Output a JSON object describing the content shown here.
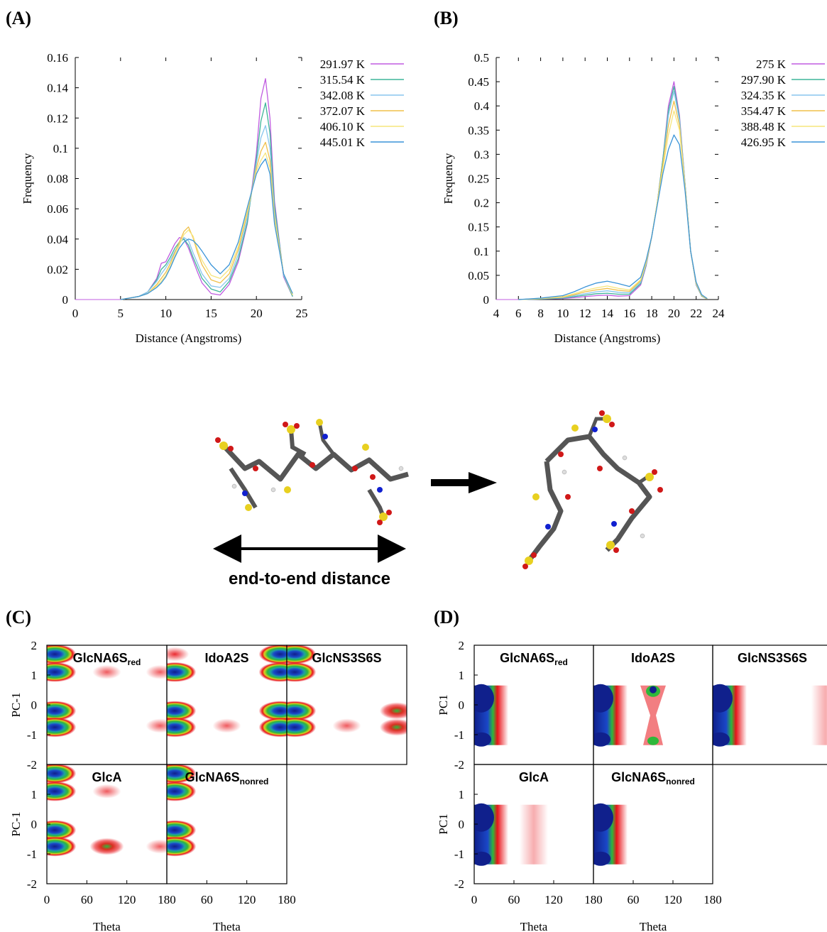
{
  "panels": {
    "A": "(A)",
    "B": "(B)",
    "C": "(C)",
    "D": "(D)"
  },
  "colors": {
    "series": [
      "#c05ce0",
      "#3fb59a",
      "#88c6ee",
      "#f0c04a",
      "#f6e57c",
      "#3a94d8"
    ],
    "density_low": "#e8141a",
    "density_mid": "#2eb83a",
    "density_high": "#10208c"
  },
  "schematic": {
    "arrow_label": "end-to-end distance",
    "icons": [
      "extended-molecule-icon",
      "folded-molecule-icon",
      "transition-arrow-icon",
      "double-arrow-icon"
    ]
  },
  "chart_data": [
    {
      "id": "A",
      "type": "line",
      "xlabel": "Distance (Angstroms)",
      "ylabel": "Frequency",
      "xlim": [
        0,
        25
      ],
      "ylim": [
        0,
        0.16
      ],
      "xticks": [
        "0",
        "5",
        "10",
        "15",
        "20",
        "25"
      ],
      "yticks": [
        "0",
        "0.02",
        "0.04",
        "0.06",
        "0.08",
        "0.1",
        "0.12",
        "0.14",
        "0.16"
      ],
      "legend_position": "outside-right",
      "x": [
        5,
        6,
        7,
        8,
        9,
        9.5,
        10,
        10.5,
        11,
        11.5,
        12,
        12.5,
        13,
        13.5,
        14,
        15,
        16,
        17,
        18,
        19,
        20,
        20.5,
        21,
        21.5,
        22,
        23,
        24
      ],
      "series": [
        {
          "name": "291.97 K",
          "values": [
            0,
            0.001,
            0.002,
            0.005,
            0.014,
            0.024,
            0.025,
            0.031,
            0.037,
            0.041,
            0.04,
            0.034,
            0.026,
            0.018,
            0.011,
            0.004,
            0.003,
            0.01,
            0.025,
            0.05,
            0.097,
            0.133,
            0.146,
            0.12,
            0.065,
            0.015,
            0.002
          ]
        },
        {
          "name": "315.54 K",
          "values": [
            0,
            0.001,
            0.002,
            0.005,
            0.013,
            0.02,
            0.023,
            0.028,
            0.034,
            0.038,
            0.04,
            0.036,
            0.028,
            0.021,
            0.014,
            0.007,
            0.005,
            0.012,
            0.027,
            0.051,
            0.093,
            0.118,
            0.13,
            0.11,
            0.062,
            0.016,
            0.002
          ]
        },
        {
          "name": "342.08 K",
          "values": [
            0,
            0.001,
            0.002,
            0.005,
            0.012,
            0.017,
            0.021,
            0.026,
            0.032,
            0.037,
            0.041,
            0.039,
            0.031,
            0.024,
            0.017,
            0.009,
            0.008,
            0.014,
            0.03,
            0.054,
            0.09,
            0.107,
            0.115,
            0.1,
            0.058,
            0.016,
            0.003
          ]
        },
        {
          "name": "372.07 K",
          "values": [
            0,
            0.001,
            0.002,
            0.004,
            0.01,
            0.014,
            0.018,
            0.024,
            0.031,
            0.038,
            0.045,
            0.048,
            0.041,
            0.031,
            0.023,
            0.013,
            0.011,
            0.017,
            0.033,
            0.057,
            0.087,
            0.098,
            0.104,
            0.092,
            0.055,
            0.017,
            0.003
          ]
        },
        {
          "name": "406.10 K",
          "values": [
            0,
            0.001,
            0.002,
            0.004,
            0.009,
            0.012,
            0.016,
            0.022,
            0.029,
            0.036,
            0.043,
            0.046,
            0.042,
            0.033,
            0.026,
            0.016,
            0.014,
            0.02,
            0.035,
            0.059,
            0.085,
            0.092,
            0.097,
            0.087,
            0.053,
            0.017,
            0.003
          ]
        },
        {
          "name": "445.01 K",
          "values": [
            0,
            0.001,
            0.002,
            0.004,
            0.008,
            0.011,
            0.015,
            0.021,
            0.028,
            0.034,
            0.038,
            0.04,
            0.039,
            0.036,
            0.032,
            0.023,
            0.017,
            0.023,
            0.038,
            0.061,
            0.083,
            0.089,
            0.093,
            0.083,
            0.05,
            0.017,
            0.004
          ]
        }
      ]
    },
    {
      "id": "B",
      "type": "line",
      "xlabel": "Distance (Angstroms)",
      "ylabel": "Frequency",
      "xlim": [
        4,
        24
      ],
      "ylim": [
        0,
        0.5
      ],
      "xticks": [
        "4",
        "6",
        "8",
        "10",
        "12",
        "14",
        "16",
        "18",
        "20",
        "22",
        "24"
      ],
      "yticks": [
        "0",
        "0.05",
        "0.1",
        "0.15",
        "0.2",
        "0.25",
        "0.3",
        "0.35",
        "0.4",
        "0.45",
        "0.5"
      ],
      "legend_position": "outside-right",
      "x": [
        6,
        8,
        10,
        11,
        12,
        13,
        14,
        15,
        16,
        17,
        17.5,
        18,
        18.5,
        19,
        19.5,
        20,
        20.5,
        21,
        21.5,
        22,
        22.5,
        23
      ],
      "series": [
        {
          "name": "275 K",
          "values": [
            0,
            0.001,
            0.002,
            0.004,
            0.006,
            0.008,
            0.009,
            0.007,
            0.008,
            0.03,
            0.07,
            0.13,
            0.2,
            0.29,
            0.4,
            0.45,
            0.38,
            0.24,
            0.1,
            0.03,
            0.007,
            0.001
          ]
        },
        {
          "name": "297.90 K",
          "values": [
            0,
            0.001,
            0.003,
            0.006,
            0.009,
            0.012,
            0.013,
            0.011,
            0.011,
            0.033,
            0.072,
            0.13,
            0.2,
            0.29,
            0.39,
            0.44,
            0.375,
            0.24,
            0.1,
            0.031,
            0.007,
            0.001
          ]
        },
        {
          "name": "324.35 K",
          "values": [
            0,
            0.002,
            0.004,
            0.008,
            0.012,
            0.016,
            0.018,
            0.015,
            0.014,
            0.036,
            0.074,
            0.13,
            0.2,
            0.28,
            0.38,
            0.43,
            0.37,
            0.24,
            0.1,
            0.032,
            0.008,
            0.001
          ]
        },
        {
          "name": "354.47 K",
          "values": [
            0,
            0.002,
            0.005,
            0.01,
            0.016,
            0.02,
            0.023,
            0.019,
            0.017,
            0.039,
            0.076,
            0.13,
            0.2,
            0.28,
            0.36,
            0.41,
            0.36,
            0.235,
            0.1,
            0.033,
            0.008,
            0.001
          ]
        },
        {
          "name": "388.48 K",
          "values": [
            0,
            0.002,
            0.006,
            0.012,
            0.019,
            0.024,
            0.028,
            0.023,
            0.02,
            0.041,
            0.078,
            0.13,
            0.2,
            0.27,
            0.34,
            0.39,
            0.35,
            0.23,
            0.1,
            0.034,
            0.009,
            0.002
          ]
        },
        {
          "name": "426.95 K",
          "values": [
            0,
            0.003,
            0.008,
            0.016,
            0.026,
            0.034,
            0.038,
            0.033,
            0.027,
            0.046,
            0.082,
            0.13,
            0.195,
            0.26,
            0.31,
            0.34,
            0.32,
            0.225,
            0.1,
            0.036,
            0.01,
            0.002
          ]
        }
      ]
    },
    {
      "id": "C",
      "type": "heatmap",
      "xlabel": "Theta",
      "ylabel": "PC-1",
      "xlim": [
        0,
        180
      ],
      "ylim": [
        -2,
        2
      ],
      "xticks": [
        "0",
        "60",
        "120",
        "180"
      ],
      "yticks": [
        "2",
        "1",
        "0",
        "-1",
        "-2"
      ],
      "subplots": [
        {
          "label_main": "GlcNA6S",
          "label_sub": "red",
          "blobs": [
            [
              12,
              1.7,
              "full"
            ],
            [
              12,
              1.1,
              "full"
            ],
            [
              12,
              -0.2,
              "full"
            ],
            [
              12,
              -0.75,
              "full"
            ],
            [
              90,
              1.1,
              "sparse"
            ],
            [
              170,
              1.1,
              "sparse"
            ],
            [
              170,
              -0.7,
              "sparse"
            ]
          ]
        },
        {
          "label_main": "IdoA2S",
          "label_sub": "",
          "blobs": [
            [
              12,
              1.7,
              "weak"
            ],
            [
              12,
              1.1,
              "full"
            ],
            [
              12,
              -0.2,
              "full"
            ],
            [
              12,
              -0.75,
              "full"
            ],
            [
              170,
              1.7,
              "full"
            ],
            [
              170,
              1.1,
              "full"
            ],
            [
              170,
              -0.2,
              "full"
            ],
            [
              170,
              -0.75,
              "full"
            ],
            [
              90,
              -0.7,
              "sparse"
            ]
          ]
        },
        {
          "label_main": "GlcNS3S6S",
          "label_sub": "",
          "blobs": [
            [
              12,
              1.7,
              "full"
            ],
            [
              12,
              1.1,
              "full"
            ],
            [
              12,
              -0.2,
              "full"
            ],
            [
              12,
              -0.75,
              "full"
            ],
            [
              90,
              -0.7,
              "sparse"
            ],
            [
              165,
              -0.2,
              "medium"
            ],
            [
              165,
              -0.75,
              "medium"
            ]
          ]
        },
        {
          "label_main": "GlcA",
          "label_sub": "",
          "blobs": [
            [
              12,
              1.7,
              "full"
            ],
            [
              12,
              1.1,
              "full"
            ],
            [
              12,
              -0.2,
              "full"
            ],
            [
              12,
              -0.75,
              "full"
            ],
            [
              90,
              -0.75,
              "medium"
            ],
            [
              90,
              1.1,
              "sparse"
            ],
            [
              170,
              -0.75,
              "sparse"
            ]
          ]
        },
        {
          "label_main": "GlcNA6S",
          "label_sub": "nonred",
          "blobs": [
            [
              12,
              1.7,
              "full"
            ],
            [
              12,
              1.1,
              "full"
            ],
            [
              12,
              -0.2,
              "full"
            ],
            [
              12,
              -0.75,
              "full"
            ]
          ]
        }
      ]
    },
    {
      "id": "D",
      "type": "heatmap",
      "xlabel": "Theta",
      "ylabel": "PC1",
      "xlim": [
        0,
        180
      ],
      "ylim": [
        -2,
        2
      ],
      "xticks": [
        "0",
        "60",
        "120",
        "180"
      ],
      "yticks": [
        "2",
        "1",
        "0",
        "-1",
        "-2"
      ],
      "subplots": [
        {
          "label_main": "GlcNA6S",
          "label_sub": "red",
          "bands": [
            [
              12,
              "full"
            ]
          ]
        },
        {
          "label_main": "IdoA2S",
          "label_sub": "",
          "bands": [
            [
              12,
              "full"
            ],
            [
              90,
              "hourglass"
            ]
          ]
        },
        {
          "label_main": "GlcNS3S6S",
          "label_sub": "",
          "bands": [
            [
              12,
              "full"
            ],
            [
              170,
              "sparse"
            ]
          ]
        },
        {
          "label_main": "GlcA",
          "label_sub": "",
          "bands": [
            [
              12,
              "full"
            ],
            [
              90,
              "sparse"
            ]
          ]
        },
        {
          "label_main": "GlcNA6S",
          "label_sub": "nonred",
          "bands": [
            [
              12,
              "full"
            ]
          ]
        }
      ]
    }
  ]
}
